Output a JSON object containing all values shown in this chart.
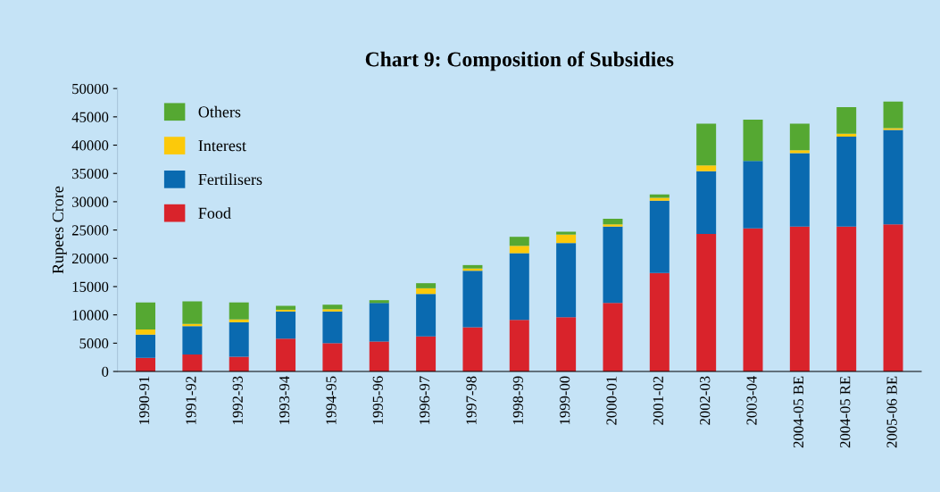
{
  "chart_data": {
    "type": "bar",
    "title": "Chart 9: Composition of Subsidies",
    "ylabel": "Rupees Crore",
    "categories": [
      "1990-91",
      "1991-92",
      "1992-93",
      "1993-94",
      "1994-95",
      "1995-96",
      "1996-97",
      "1997-98",
      "1998-99",
      "1999-00",
      "2000-01",
      "2001-02",
      "2002-03",
      "2003-04",
      "2004-05 BE",
      "2004-05 RE",
      "2005-06 BE"
    ],
    "stacked": true,
    "series": [
      {
        "name": "Food",
        "color": "#d9232b",
        "values": [
          2400,
          3000,
          2600,
          5800,
          5000,
          5300,
          6200,
          7800,
          9100,
          9600,
          12100,
          17400,
          24300,
          25300,
          25600,
          25600,
          26000
        ]
      },
      {
        "name": "Fertilisers",
        "color": "#0a6ab0",
        "values": [
          4100,
          5000,
          6100,
          4800,
          5600,
          6800,
          7500,
          10000,
          11800,
          13100,
          13500,
          12800,
          11100,
          11900,
          13000,
          15900,
          16700
        ]
      },
      {
        "name": "Interest",
        "color": "#fcc90a",
        "values": [
          900,
          400,
          500,
          300,
          400,
          null,
          1000,
          400,
          1300,
          1500,
          400,
          500,
          1000,
          0,
          500,
          500,
          300
        ]
      },
      {
        "name": "Others",
        "color": "#55a832",
        "values": [
          4800,
          4000,
          3000,
          700,
          800,
          500,
          900,
          600,
          1600,
          500,
          1000,
          600,
          7400,
          7300,
          4700,
          4700,
          4700
        ]
      }
    ],
    "ylim": [
      0,
      50000
    ],
    "yticks": [
      0,
      5000,
      10000,
      15000,
      20000,
      25000,
      30000,
      35000,
      40000,
      45000,
      50000
    ],
    "grid": false,
    "legend": "top left"
  }
}
